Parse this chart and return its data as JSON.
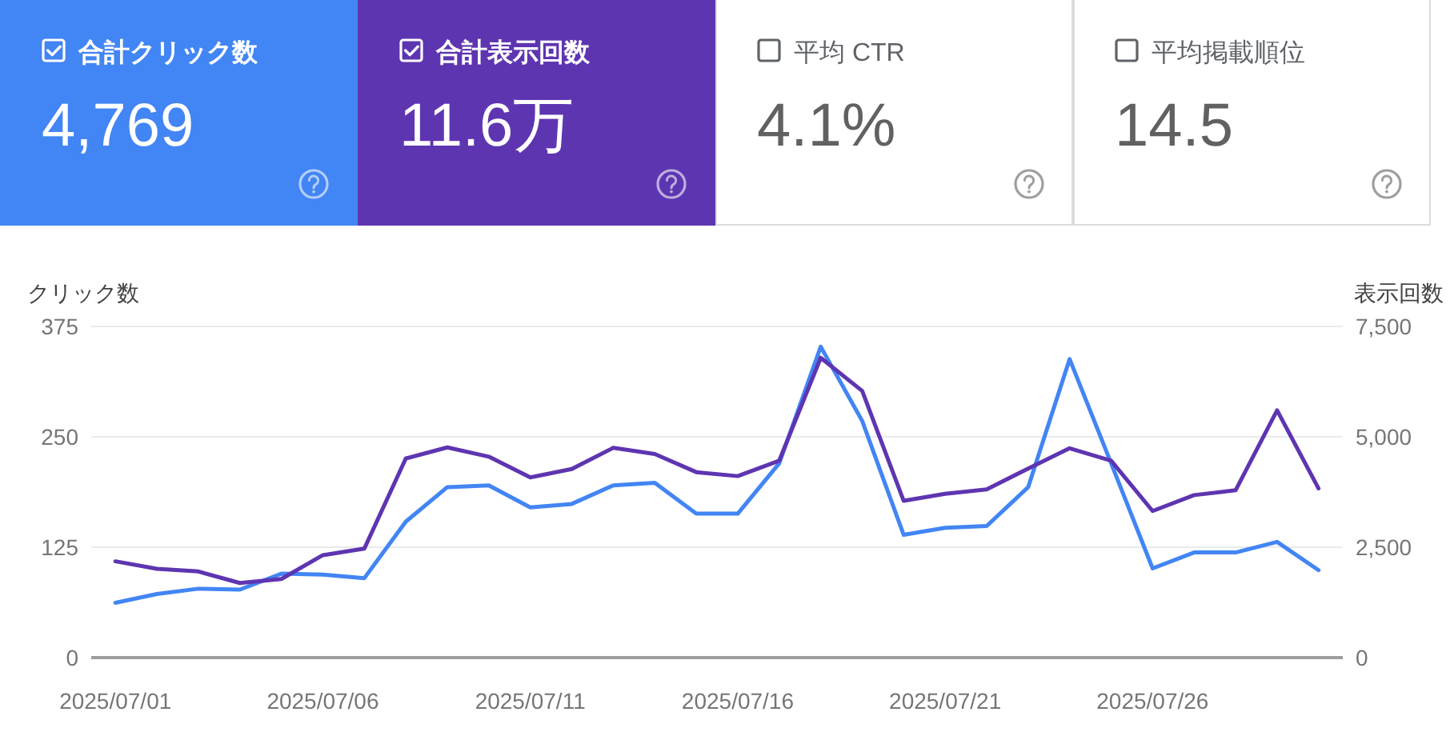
{
  "chart_data": [
    {
      "type": "other",
      "categories": [
        "合計クリック数",
        "合計表示回数",
        "平均 CTR",
        "平均掲載順位"
      ],
      "value_labels": [
        "4,769",
        "11.6万",
        "4.1%",
        "14.5"
      ],
      "colors": [
        "#4285f4",
        "#5e35b1",
        null,
        null
      ]
    },
    {
      "type": "line",
      "ylabel": "クリック数",
      "y2label": "表示回数",
      "x": [
        "2025-07-01",
        "2025-07-02",
        "2025-07-03",
        "2025-07-04",
        "2025-07-05",
        "2025-07-06",
        "2025-07-07",
        "2025-07-08",
        "2025-07-09",
        "2025-07-10",
        "2025-07-11",
        "2025-07-12",
        "2025-07-13",
        "2025-07-14",
        "2025-07-15",
        "2025-07-16",
        "2025-07-17",
        "2025-07-18",
        "2025-07-19",
        "2025-07-20",
        "2025-07-21",
        "2025-07-22",
        "2025-07-23",
        "2025-07-24",
        "2025-07-25",
        "2025-07-26",
        "2025-07-27",
        "2025-07-28",
        "2025-07-29",
        "2025-07-30"
      ],
      "series": [
        {
          "color": "#4285f4",
          "values": [
            62,
            72,
            78,
            77,
            95,
            94,
            90,
            154,
            193,
            195,
            170,
            174,
            195,
            198,
            163,
            163,
            220,
            352,
            268,
            139,
            147,
            149,
            193,
            338,
            220,
            101,
            119,
            119,
            131,
            99
          ]
        },
        {
          "color": "#5e35b1",
          "axis": "y2",
          "values": [
            2180,
            2010,
            1950,
            1690,
            1780,
            2320,
            2470,
            4510,
            4760,
            4550,
            4080,
            4270,
            4750,
            4610,
            4200,
            4110,
            4460,
            6790,
            6040,
            3550,
            3710,
            3810,
            4280,
            4740,
            4460,
            3320,
            3680,
            3790,
            5600,
            3830
          ]
        }
      ],
      "xlim": [
        "2025-06-30T10:00",
        "2025-07-30T14:00"
      ],
      "xticks": [
        {
          "value": "2025-07-01",
          "label": "2025/07/01"
        },
        {
          "value": "2025-07-06",
          "label": "2025/07/06"
        },
        {
          "value": "2025-07-11",
          "label": "2025/07/11"
        },
        {
          "value": "2025-07-16",
          "label": "2025/07/16"
        },
        {
          "value": "2025-07-21",
          "label": "2025/07/21"
        },
        {
          "value": "2025-07-26",
          "label": "2025/07/26"
        }
      ],
      "ylim": [
        0,
        375
      ],
      "yticks": [
        0,
        125,
        250,
        375
      ],
      "y2lim": [
        0,
        7500
      ],
      "y2ticks": [
        0,
        {
          "value": 2500,
          "label": "2,500"
        },
        {
          "value": 5000,
          "label": "5,000"
        },
        {
          "value": 7500,
          "label": "7,500"
        }
      ],
      "grid": "y"
    }
  ]
}
